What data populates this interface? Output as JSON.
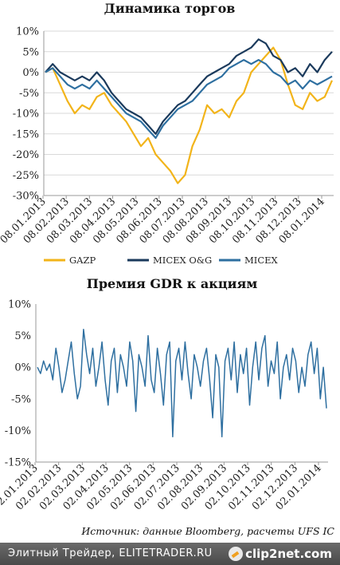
{
  "chart_data": [
    {
      "type": "line",
      "title": "Динамика торгов",
      "y_ticks": [
        "10%",
        "5%",
        "0%",
        "-5%",
        "-10%",
        "-15%",
        "-20%",
        "-25%",
        "-30%"
      ],
      "ylim": [
        -30,
        10
      ],
      "x_ticks": [
        "08.01.2013",
        "08.02.2013",
        "08.03.2013",
        "08.04.2013",
        "08.05.2013",
        "08.06.2013",
        "08.07.2013",
        "08.08.2013",
        "08.09.2013",
        "08.10.2013",
        "08.11.2013",
        "08.12.2013",
        "08.01.2014"
      ],
      "grid": true,
      "legend_position": "bottom",
      "series": [
        {
          "name": "GAZP",
          "color": "#f2b41a",
          "values": [
            0,
            1,
            -3,
            -7,
            -10,
            -8,
            -9,
            -6,
            -5,
            -8,
            -10,
            -12,
            -15,
            -18,
            -16,
            -20,
            -22,
            -24,
            -27,
            -25,
            -18,
            -14,
            -8,
            -10,
            -9,
            -11,
            -7,
            -5,
            0,
            2,
            4,
            6,
            3,
            -3,
            -8,
            -9,
            -5,
            -7,
            -6,
            -2
          ]
        },
        {
          "name": "MICEX O&G",
          "color": "#1b3a5c",
          "values": [
            0,
            2,
            0,
            -1,
            -2,
            -1,
            -2,
            0,
            -2,
            -5,
            -7,
            -9,
            -10,
            -11,
            -13,
            -15,
            -12,
            -10,
            -8,
            -7,
            -5,
            -3,
            -1,
            0,
            1,
            2,
            4,
            5,
            6,
            8,
            7,
            4,
            3,
            0,
            1,
            -1,
            2,
            0,
            3,
            5
          ]
        },
        {
          "name": "MICEX",
          "color": "#2e6fa0",
          "values": [
            0,
            1,
            -1,
            -3,
            -4,
            -3,
            -4,
            -2,
            -4,
            -6,
            -8,
            -10,
            -11,
            -12,
            -14,
            -16,
            -13,
            -11,
            -9,
            -8,
            -7,
            -5,
            -3,
            -2,
            -1,
            1,
            2,
            3,
            2,
            3,
            2,
            0,
            -1,
            -3,
            -2,
            -4,
            -2,
            -3,
            -2,
            -1
          ]
        }
      ]
    },
    {
      "type": "line",
      "title": "Премия GDR к акциям",
      "y_ticks": [
        "10%",
        "5%",
        "0%",
        "-5%",
        "-10%",
        "-15%"
      ],
      "ylim": [
        -15,
        10
      ],
      "x_ticks": [
        "02.01.2013",
        "02.02.2013",
        "02.03.2013",
        "02.04.2013",
        "02.05.2013",
        "02.06.2013",
        "02.07.2013",
        "02.08.2013",
        "02.09.2013",
        "02.10.2013",
        "02.11.2013",
        "02.12.2013",
        "02.01.2014"
      ],
      "grid": false,
      "series": [
        {
          "color": "#2e6fa0",
          "values": [
            0,
            -1,
            1,
            -0.5,
            0.5,
            -2,
            3,
            0,
            -4,
            -2,
            1,
            4,
            -1,
            -5,
            -3,
            6,
            2,
            -1,
            3,
            -3,
            0,
            4,
            -2,
            -6,
            1,
            3,
            -4,
            2,
            0,
            -3,
            4,
            1,
            -7,
            2,
            0,
            -3,
            5,
            -2,
            -4,
            3,
            -1,
            -6,
            2,
            4,
            -11,
            1,
            3,
            -2,
            4,
            -1,
            -5,
            2,
            0,
            -3,
            1,
            3,
            -2,
            -8,
            2,
            0,
            -11,
            1,
            3,
            -2,
            4,
            -4,
            2,
            -1,
            3,
            -6,
            0,
            4,
            -2,
            3,
            5,
            -3,
            1,
            -1,
            4,
            -5,
            0,
            2,
            -2,
            3,
            1,
            -4,
            0,
            -3,
            2,
            4,
            -1,
            3,
            -5,
            0,
            -6.5
          ]
        }
      ]
    }
  ],
  "source_text": "Источник: данные Bloomberg, расчеты UFS IC",
  "footer": {
    "site_text": "Элитный Трейдер, ELITETRADER.RU",
    "brand_text": "clip2net.com",
    "brand_icon": "clip2net-logo-icon"
  }
}
